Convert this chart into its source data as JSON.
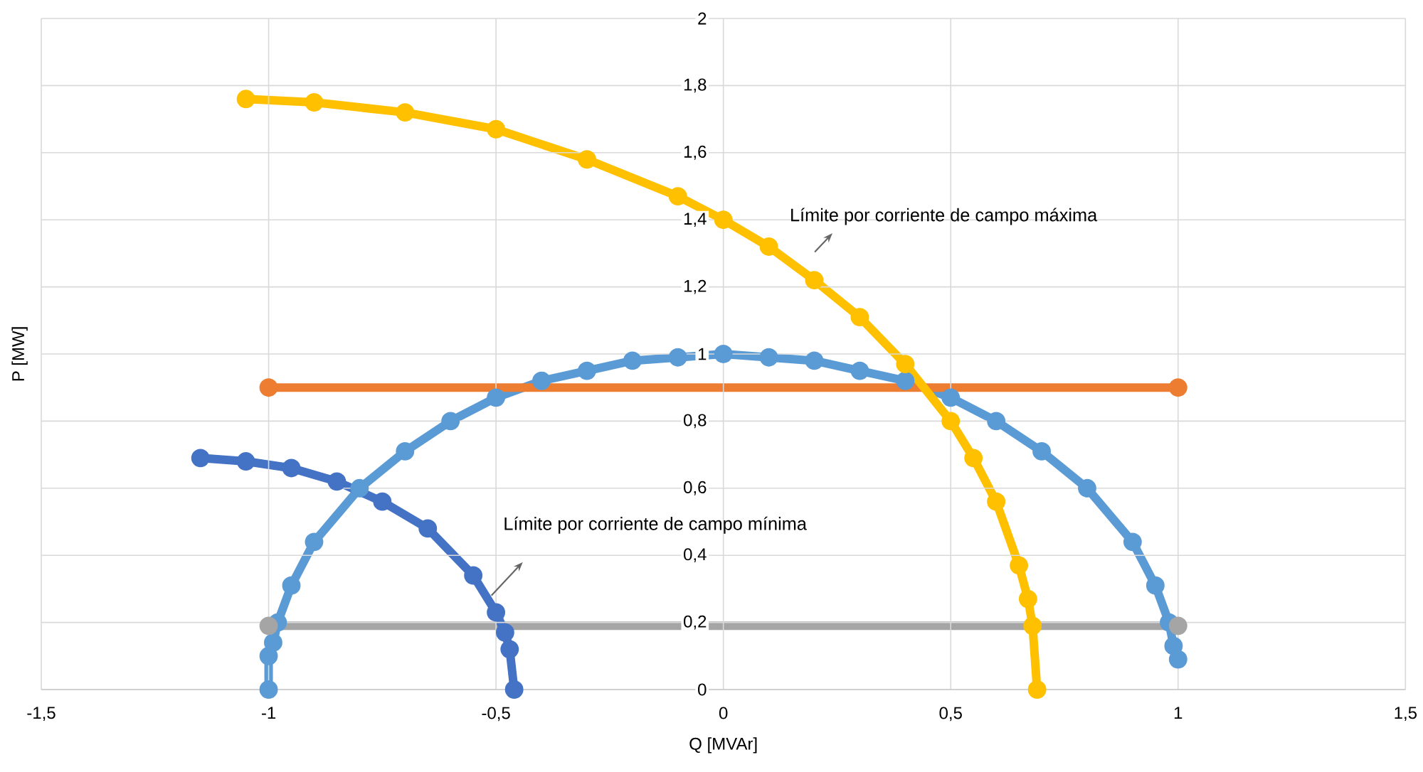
{
  "chart_data": {
    "type": "line",
    "xlabel": "Q [MVAr]",
    "ylabel": "P [MW]",
    "xlim": [
      -1.5,
      1.5
    ],
    "xticks": [
      {
        "value": -1.5,
        "label": "-1,5"
      },
      -1,
      {
        "value": -0.5,
        "label": "-0,5"
      },
      0,
      {
        "value": 0.5,
        "label": "0,5"
      },
      1,
      {
        "value": 1.5,
        "label": "1,5"
      }
    ],
    "ylim": [
      0,
      2
    ],
    "yticks": [
      0,
      {
        "value": 0.2,
        "label": "0,2"
      },
      {
        "value": 0.4,
        "label": "0,4"
      },
      {
        "value": 0.6,
        "label": "0,6"
      },
      {
        "value": 0.8,
        "label": "0,8"
      },
      1,
      {
        "value": 1.2,
        "label": "1,2"
      },
      {
        "value": 1.4,
        "label": "1,4"
      },
      {
        "value": 1.6,
        "label": "1,6"
      },
      {
        "value": 1.8,
        "label": "1,8"
      },
      2
    ],
    "grid": true,
    "marker": "circle",
    "line_style": "solid",
    "series": [
      {
        "color": "#5b9bd5",
        "x": [
          -1,
          -1,
          -0.99,
          -0.98,
          -0.95,
          -0.9,
          -0.8,
          -0.7,
          -0.6,
          -0.5,
          -0.4,
          -0.3,
          -0.2,
          -0.1,
          0,
          0.1,
          0.2,
          0.3,
          0.4,
          0.5,
          0.6,
          0.7,
          0.8,
          0.9,
          0.95,
          0.98,
          0.99,
          1
        ],
        "values": [
          0,
          0.1,
          0.14,
          0.2,
          0.31,
          0.44,
          0.6,
          0.71,
          0.8,
          0.87,
          0.92,
          0.95,
          0.98,
          0.99,
          1,
          0.99,
          0.98,
          0.95,
          0.92,
          0.87,
          0.8,
          0.71,
          0.6,
          0.44,
          0.31,
          0.2,
          0.13,
          0.09
        ]
      },
      {
        "color": "#ed7d31",
        "x": [
          -1,
          1
        ],
        "values": [
          0.9,
          0.9
        ]
      },
      {
        "color": "#a5a5a5",
        "x": [
          -1,
          1
        ],
        "values": [
          0.19,
          0.19
        ]
      },
      {
        "color": "#ffc000",
        "x": [
          -1.05,
          -0.9,
          -0.7,
          -0.5,
          -0.3,
          -0.1,
          0,
          0.1,
          0.2,
          0.3,
          0.4,
          0.5,
          0.55,
          0.6,
          0.65,
          0.67,
          0.68,
          0.69
        ],
        "values": [
          1.76,
          1.75,
          1.72,
          1.67,
          1.58,
          1.47,
          1.4,
          1.32,
          1.22,
          1.11,
          0.97,
          0.8,
          0.69,
          0.56,
          0.37,
          0.27,
          0.19,
          0
        ]
      },
      {
        "color": "#4472c4",
        "x": [
          -1.15,
          -1.05,
          -0.95,
          -0.85,
          -0.75,
          -0.65,
          -0.55,
          -0.5,
          -0.48,
          -0.47,
          -0.46
        ],
        "values": [
          0.69,
          0.68,
          0.66,
          0.62,
          0.56,
          0.48,
          0.34,
          0.23,
          0.17,
          0.12,
          0
        ]
      }
    ],
    "annotations": [
      "Límite por corriente de campo máxima",
      "Límite por corriente de campo mínima"
    ]
  }
}
